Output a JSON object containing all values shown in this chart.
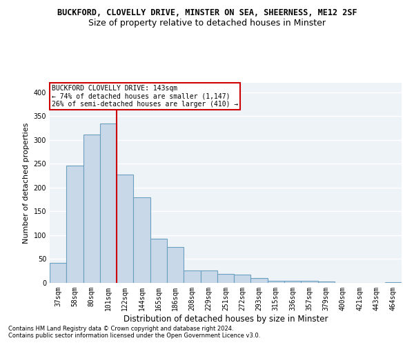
{
  "title1": "BUCKFORD, CLOVELLY DRIVE, MINSTER ON SEA, SHEERNESS, ME12 2SF",
  "title2": "Size of property relative to detached houses in Minster",
  "xlabel": "Distribution of detached houses by size in Minster",
  "ylabel": "Number of detached properties",
  "categories": [
    "37sqm",
    "58sqm",
    "80sqm",
    "101sqm",
    "122sqm",
    "144sqm",
    "165sqm",
    "186sqm",
    "208sqm",
    "229sqm",
    "251sqm",
    "272sqm",
    "293sqm",
    "315sqm",
    "336sqm",
    "357sqm",
    "379sqm",
    "400sqm",
    "421sqm",
    "443sqm",
    "464sqm"
  ],
  "values": [
    42,
    246,
    312,
    335,
    227,
    180,
    92,
    75,
    26,
    26,
    19,
    18,
    10,
    4,
    5,
    4,
    3,
    0,
    0,
    0,
    2
  ],
  "bar_color": "#c8d8e8",
  "bar_edge_color": "#6a9fc0",
  "vline_color": "#cc0000",
  "annotation_box_text": "BUCKFORD CLOVELLY DRIVE: 143sqm\n← 74% of detached houses are smaller (1,147)\n26% of semi-detached houses are larger (410) →",
  "annotation_box_color": "#cc0000",
  "background_color": "#eef3f8",
  "grid_color": "#ffffff",
  "ylim": [
    0,
    420
  ],
  "yticks": [
    0,
    50,
    100,
    150,
    200,
    250,
    300,
    350,
    400
  ],
  "footnote1": "Contains HM Land Registry data © Crown copyright and database right 2024.",
  "footnote2": "Contains public sector information licensed under the Open Government Licence v3.0.",
  "title1_fontsize": 8.5,
  "title2_fontsize": 9,
  "xlabel_fontsize": 8.5,
  "ylabel_fontsize": 8,
  "tick_fontsize": 7,
  "annotation_fontsize": 7,
  "footnote_fontsize": 6
}
